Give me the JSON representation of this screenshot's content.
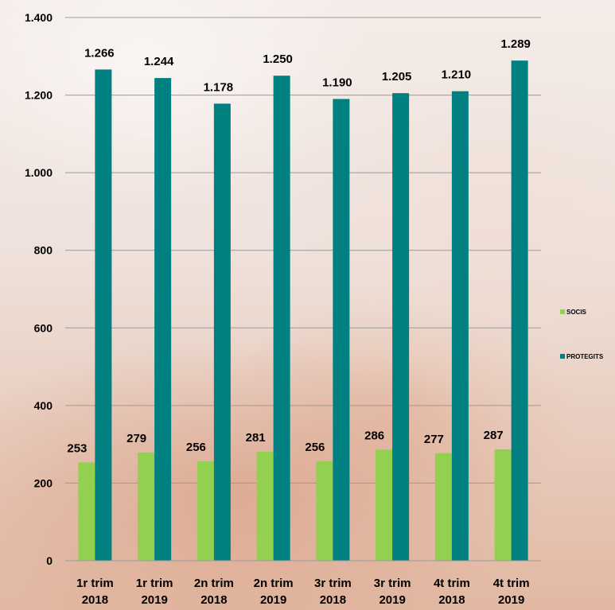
{
  "chart_data": {
    "type": "bar",
    "categories": [
      [
        "1r trim",
        "2018"
      ],
      [
        "1r trim",
        "2019"
      ],
      [
        "2n trim",
        "2018"
      ],
      [
        "2n trim",
        "2019"
      ],
      [
        "3r trim",
        "2018"
      ],
      [
        "3r trim",
        "2019"
      ],
      [
        "4t trim",
        "2018"
      ],
      [
        "4t trim",
        "2019"
      ]
    ],
    "series": [
      {
        "name": "SOCIS",
        "color": "#92d050",
        "values": [
          253,
          279,
          256,
          281,
          256,
          286,
          277,
          287
        ],
        "labels": [
          "253",
          "279",
          "256",
          "281",
          "256",
          "286",
          "277",
          "287"
        ]
      },
      {
        "name": "PROTEGITS",
        "color": "#008080",
        "values": [
          1266,
          1244,
          1178,
          1250,
          1190,
          1205,
          1210,
          1289
        ],
        "labels": [
          "1.266",
          "1.244",
          "1.178",
          "1.250",
          "1.190",
          "1.205",
          "1.210",
          "1.289"
        ]
      }
    ],
    "y_ticks": [
      0,
      200,
      400,
      600,
      800,
      1000,
      1200,
      1400
    ],
    "y_tick_labels": [
      "0",
      "200",
      "400",
      "600",
      "800",
      "1.000",
      "1.200",
      "1.400"
    ],
    "ylim": [
      0,
      1400
    ],
    "grid": true,
    "legend_position": "right"
  }
}
